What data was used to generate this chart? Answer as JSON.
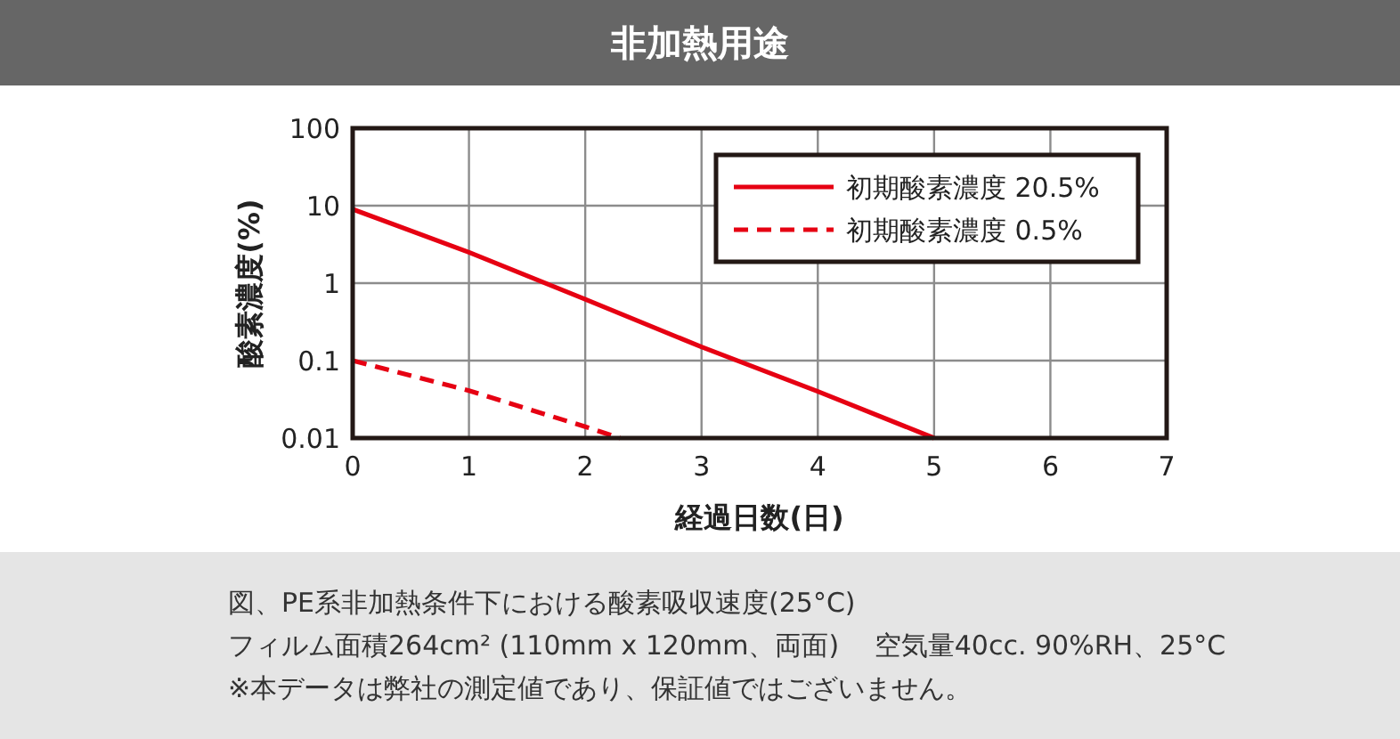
{
  "chart_data": {
    "type": "line",
    "title": "非加熱用途",
    "xlabel": "経過日数(日)",
    "ylabel": "酸素濃度(%)",
    "xlim": [
      0,
      7
    ],
    "xticks": [
      0,
      1,
      2,
      3,
      4,
      5,
      6,
      7
    ],
    "ylim": [
      0.01,
      100
    ],
    "yticks": [
      0.01,
      0.1,
      1,
      10,
      100
    ],
    "log": "y",
    "grid": true,
    "legend": "top right",
    "series": [
      {
        "name": "初期酸素濃度 20.5%",
        "color": "#e60012",
        "line_style": "solid",
        "x": [
          0,
          1,
          2,
          3,
          4,
          5
        ],
        "values": [
          9,
          2.5,
          0.62,
          0.15,
          0.04,
          0.01
        ]
      },
      {
        "name": "初期酸素濃度 0.5%",
        "color": "#e60012",
        "line_style": "dashed",
        "x": [
          0,
          1,
          2,
          2.3
        ],
        "values": [
          0.1,
          0.041,
          0.014,
          0.01
        ]
      }
    ],
    "annotations": [
      "図、PE系非加熱条件下における酸素吸収速度(25°C)",
      "フィルム面積264cm² (110mm x 120mm、両面)　 空気量40cc. 90%RH、25°C",
      "※本データは弊社の測定値であり、保証値ではございません。"
    ]
  }
}
